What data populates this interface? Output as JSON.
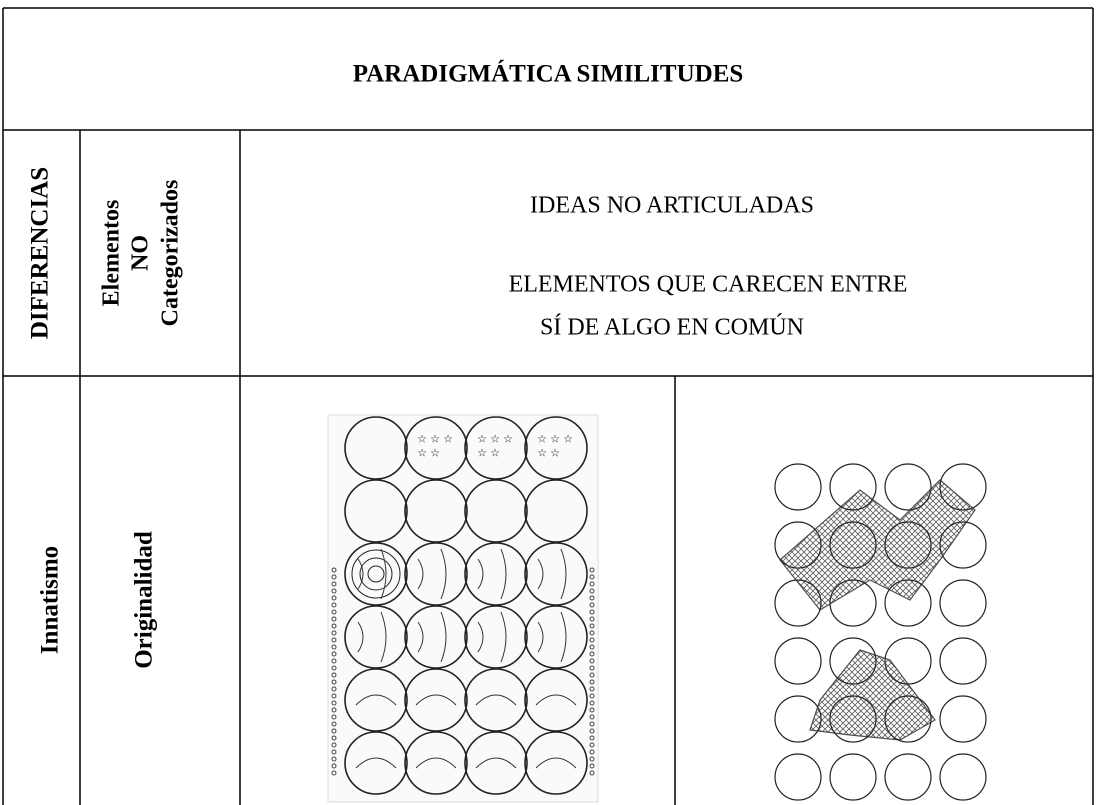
{
  "header": {
    "title": "PARADIGMÁTICA SIMILITUDES"
  },
  "rows": [
    {
      "group": "DIFERENCIAS",
      "label": [
        "Elementos",
        "NO",
        "Categorizados"
      ],
      "content": [
        "IDEAS NO ARTICULADAS",
        "ELEMENTOS QUE CARECEN ENTRE",
        "SÍ DE ALGO EN COMÚN"
      ]
    },
    {
      "group": "Innatismo",
      "label": [
        "Originalidad"
      ]
    }
  ]
}
